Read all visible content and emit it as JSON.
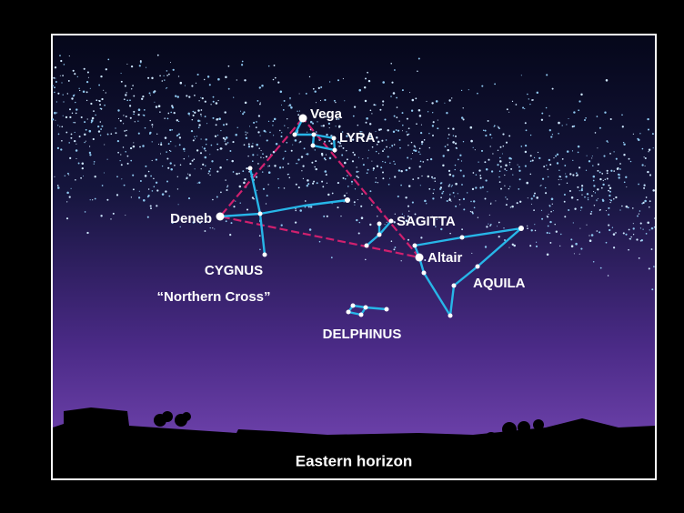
{
  "labels": {
    "vega": "Vega",
    "lyra": "LYRA",
    "deneb": "Deneb",
    "sagitta": "SAGITTA",
    "altair": "Altair",
    "cygnus": "CYGNUS",
    "northern_cross": "“Northern Cross”",
    "aquila": "AQUILA",
    "delphinus": "DELPHINUS"
  },
  "footer": "Eastern horizon"
}
